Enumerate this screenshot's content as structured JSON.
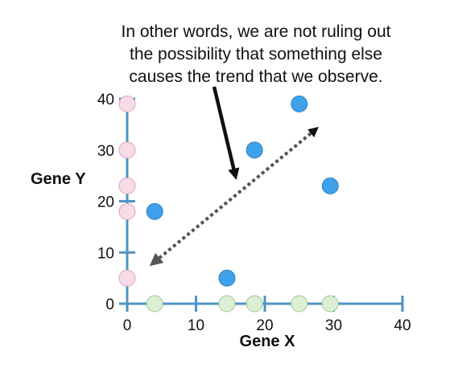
{
  "annotation": {
    "lines": [
      "In other words, we are not ruling out",
      "the possibility that something else",
      "causes the trend that we observe."
    ]
  },
  "chart_data": {
    "type": "scatter",
    "xlabel": "Gene X",
    "ylabel": "Gene Y",
    "xlim": [
      0,
      40
    ],
    "ylim": [
      0,
      40
    ],
    "xticks": [
      0,
      10,
      20,
      30,
      40
    ],
    "yticks": [
      0,
      10,
      20,
      30,
      40
    ],
    "series": [
      {
        "color": "#3fa1eb",
        "points": [
          [
            4,
            18
          ],
          [
            14.5,
            5
          ],
          [
            18.5,
            30
          ],
          [
            25,
            39
          ],
          [
            29.5,
            23
          ]
        ]
      },
      {
        "color": "#f9dbe8",
        "points": [
          [
            0,
            39
          ],
          [
            0,
            30
          ],
          [
            0,
            23
          ],
          [
            0,
            18
          ],
          [
            0,
            5
          ]
        ]
      },
      {
        "color": "#dcefd5",
        "points": [
          [
            4,
            0
          ],
          [
            14.5,
            0
          ],
          [
            18.5,
            0
          ],
          [
            25,
            0
          ],
          [
            29.5,
            0
          ]
        ]
      }
    ],
    "axis_color": "#4f93c4",
    "arrow_color": "#555555",
    "pointer_color": "#111111"
  }
}
